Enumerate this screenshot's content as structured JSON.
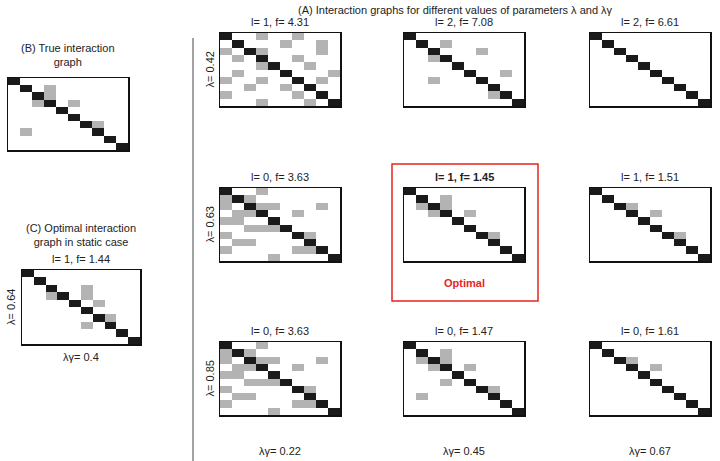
{
  "title": "(A) Interaction graphs for different values of parameters λ and λγ",
  "chart_data": [
    {
      "type": "heatmap",
      "title": "(B) True interaction graph",
      "tick_labels": false,
      "zlim": [
        0,
        2
      ],
      "colors": [
        "#ffffff",
        "#b3b3b3",
        "#1a1a1a"
      ],
      "cells": [
        [
          2,
          0,
          0,
          0,
          0,
          0,
          0,
          0,
          0,
          0
        ],
        [
          0,
          2,
          0,
          1,
          0,
          0,
          0,
          0,
          0,
          0
        ],
        [
          0,
          0,
          2,
          1,
          0,
          0,
          0,
          0,
          0,
          0
        ],
        [
          0,
          0,
          1,
          2,
          0,
          1,
          0,
          0,
          0,
          0
        ],
        [
          0,
          0,
          0,
          0,
          2,
          0,
          0,
          0,
          0,
          0
        ],
        [
          0,
          0,
          0,
          0,
          0,
          2,
          0,
          0,
          0,
          0
        ],
        [
          0,
          0,
          0,
          0,
          0,
          0,
          2,
          1,
          0,
          0
        ],
        [
          0,
          1,
          0,
          0,
          0,
          0,
          0,
          2,
          0,
          0
        ],
        [
          0,
          0,
          0,
          0,
          0,
          0,
          0,
          0,
          2,
          0
        ],
        [
          0,
          0,
          0,
          0,
          0,
          0,
          0,
          0,
          0,
          2
        ]
      ]
    },
    {
      "type": "heatmap",
      "title": "(C) Optimal interaction graph in static case",
      "subtitle": "l= 1, f= 1.44",
      "x_label": "λγ= 0.4",
      "y_label": "λ= 0.64",
      "tick_labels": false,
      "zlim": [
        0,
        2
      ],
      "colors": [
        "#ffffff",
        "#b3b3b3",
        "#1a1a1a"
      ],
      "cells": [
        [
          2,
          0,
          0,
          0,
          0,
          0,
          0,
          0,
          0,
          0
        ],
        [
          0,
          2,
          0,
          0,
          0,
          0,
          0,
          0,
          0,
          0
        ],
        [
          0,
          0,
          2,
          0,
          0,
          1,
          0,
          0,
          0,
          0
        ],
        [
          0,
          0,
          1,
          2,
          0,
          1,
          0,
          0,
          0,
          0
        ],
        [
          0,
          0,
          0,
          0,
          2,
          0,
          1,
          0,
          0,
          0
        ],
        [
          0,
          0,
          0,
          0,
          0,
          2,
          0,
          0,
          0,
          0
        ],
        [
          0,
          0,
          0,
          0,
          0,
          0,
          2,
          1,
          0,
          0
        ],
        [
          0,
          0,
          0,
          0,
          0,
          1,
          0,
          2,
          0,
          0
        ],
        [
          0,
          0,
          0,
          0,
          0,
          0,
          0,
          0,
          2,
          0
        ],
        [
          0,
          0,
          0,
          0,
          0,
          0,
          0,
          0,
          0,
          2
        ]
      ]
    },
    {
      "type": "heatmap",
      "title": "l= 1, f= 4.31",
      "y_label": "λ= 0.42",
      "tick_labels": false,
      "zlim": [
        0,
        2
      ],
      "colors": [
        "#ffffff",
        "#b3b3b3",
        "#1a1a1a"
      ],
      "cells": [
        [
          2,
          0,
          0,
          1,
          0,
          0,
          1,
          0,
          0,
          0
        ],
        [
          0,
          2,
          0,
          0,
          0,
          1,
          0,
          0,
          1,
          0
        ],
        [
          1,
          0,
          2,
          1,
          0,
          0,
          0,
          0,
          1,
          0
        ],
        [
          0,
          1,
          0,
          2,
          0,
          0,
          1,
          0,
          0,
          0
        ],
        [
          0,
          0,
          0,
          1,
          2,
          0,
          0,
          1,
          0,
          0
        ],
        [
          0,
          1,
          0,
          0,
          0,
          2,
          0,
          0,
          0,
          1
        ],
        [
          1,
          0,
          0,
          1,
          0,
          0,
          2,
          0,
          1,
          0
        ],
        [
          0,
          0,
          1,
          0,
          0,
          1,
          0,
          2,
          0,
          0
        ],
        [
          1,
          0,
          0,
          0,
          0,
          0,
          1,
          0,
          2,
          0
        ],
        [
          0,
          0,
          0,
          1,
          0,
          0,
          0,
          1,
          0,
          2
        ]
      ]
    },
    {
      "type": "heatmap",
      "title": "l= 2, f= 7.08",
      "tick_labels": false,
      "zlim": [
        0,
        2
      ],
      "colors": [
        "#ffffff",
        "#b3b3b3",
        "#1a1a1a"
      ],
      "cells": [
        [
          2,
          0,
          0,
          0,
          0,
          0,
          0,
          0,
          0,
          0
        ],
        [
          0,
          2,
          0,
          1,
          0,
          0,
          0,
          0,
          0,
          0
        ],
        [
          0,
          0,
          2,
          0,
          0,
          0,
          1,
          0,
          0,
          0
        ],
        [
          0,
          0,
          1,
          2,
          0,
          0,
          0,
          0,
          0,
          0
        ],
        [
          0,
          0,
          0,
          0,
          2,
          0,
          0,
          0,
          0,
          0
        ],
        [
          0,
          0,
          0,
          0,
          0,
          2,
          0,
          0,
          1,
          0
        ],
        [
          0,
          0,
          1,
          0,
          0,
          0,
          2,
          0,
          0,
          0
        ],
        [
          0,
          0,
          0,
          0,
          0,
          0,
          0,
          2,
          0,
          0
        ],
        [
          0,
          0,
          0,
          0,
          0,
          0,
          0,
          1,
          2,
          0
        ],
        [
          0,
          0,
          0,
          0,
          0,
          0,
          0,
          0,
          0,
          2
        ]
      ]
    },
    {
      "type": "heatmap",
      "title": "l= 2, f= 6.61",
      "tick_labels": false,
      "zlim": [
        0,
        2
      ],
      "colors": [
        "#ffffff",
        "#b3b3b3",
        "#1a1a1a"
      ],
      "cells": [
        [
          2,
          0,
          0,
          0,
          0,
          0,
          0,
          0,
          0,
          0
        ],
        [
          0,
          2,
          0,
          0,
          0,
          0,
          0,
          0,
          0,
          0
        ],
        [
          0,
          0,
          2,
          0,
          0,
          0,
          0,
          0,
          0,
          0
        ],
        [
          0,
          0,
          0,
          2,
          0,
          0,
          0,
          0,
          0,
          0
        ],
        [
          0,
          0,
          0,
          0,
          2,
          0,
          0,
          0,
          0,
          0
        ],
        [
          0,
          0,
          0,
          0,
          0,
          2,
          0,
          0,
          0,
          0
        ],
        [
          0,
          0,
          0,
          0,
          0,
          0,
          2,
          0,
          0,
          0
        ],
        [
          0,
          0,
          0,
          0,
          0,
          0,
          0,
          2,
          0,
          0
        ],
        [
          0,
          0,
          0,
          0,
          0,
          0,
          0,
          0,
          2,
          0
        ],
        [
          0,
          0,
          0,
          0,
          0,
          0,
          0,
          0,
          0,
          2
        ]
      ]
    },
    {
      "type": "heatmap",
      "title": "l= 0, f= 3.63",
      "y_label": "λ= 0.63",
      "tick_labels": false,
      "zlim": [
        0,
        2
      ],
      "colors": [
        "#ffffff",
        "#b3b3b3",
        "#1a1a1a"
      ],
      "cells": [
        [
          2,
          0,
          0,
          1,
          0,
          0,
          0,
          0,
          0,
          0
        ],
        [
          1,
          2,
          1,
          0,
          0,
          0,
          0,
          0,
          0,
          0
        ],
        [
          1,
          0,
          2,
          1,
          1,
          0,
          0,
          0,
          1,
          0
        ],
        [
          0,
          1,
          1,
          2,
          0,
          0,
          1,
          0,
          0,
          0
        ],
        [
          1,
          1,
          0,
          0,
          2,
          0,
          0,
          0,
          0,
          0
        ],
        [
          0,
          0,
          1,
          1,
          1,
          2,
          0,
          0,
          0,
          0
        ],
        [
          1,
          0,
          0,
          0,
          0,
          0,
          2,
          1,
          0,
          0
        ],
        [
          0,
          1,
          1,
          0,
          0,
          0,
          0,
          2,
          0,
          0
        ],
        [
          1,
          0,
          0,
          0,
          0,
          0,
          1,
          1,
          2,
          0
        ],
        [
          0,
          0,
          0,
          0,
          1,
          0,
          0,
          0,
          0,
          2
        ]
      ]
    },
    {
      "type": "heatmap",
      "title": "l= 1, f= 1.45",
      "annotations": [
        "Optimal"
      ],
      "color": "#e8251e",
      "tick_labels": false,
      "zlim": [
        0,
        2
      ],
      "colors": [
        "#ffffff",
        "#b3b3b3",
        "#1a1a1a"
      ],
      "cells": [
        [
          2,
          0,
          0,
          0,
          0,
          0,
          0,
          0,
          0,
          0
        ],
        [
          0,
          2,
          0,
          1,
          0,
          0,
          0,
          0,
          0,
          0
        ],
        [
          0,
          1,
          2,
          1,
          0,
          0,
          0,
          0,
          0,
          0
        ],
        [
          0,
          0,
          1,
          2,
          0,
          1,
          0,
          0,
          0,
          0
        ],
        [
          0,
          0,
          0,
          0,
          2,
          0,
          0,
          0,
          0,
          0
        ],
        [
          0,
          0,
          0,
          0,
          0,
          2,
          0,
          0,
          0,
          0
        ],
        [
          0,
          0,
          0,
          0,
          0,
          0,
          2,
          1,
          0,
          0
        ],
        [
          0,
          0,
          0,
          0,
          0,
          0,
          0,
          2,
          0,
          0
        ],
        [
          0,
          0,
          0,
          0,
          0,
          0,
          0,
          0,
          2,
          0
        ],
        [
          0,
          0,
          0,
          0,
          0,
          0,
          0,
          0,
          0,
          2
        ]
      ]
    },
    {
      "type": "heatmap",
      "title": "l= 1, f= 1.51",
      "tick_labels": false,
      "zlim": [
        0,
        2
      ],
      "colors": [
        "#ffffff",
        "#b3b3b3",
        "#1a1a1a"
      ],
      "cells": [
        [
          2,
          0,
          0,
          0,
          0,
          0,
          0,
          0,
          0,
          0
        ],
        [
          0,
          2,
          0,
          0,
          0,
          0,
          0,
          0,
          0,
          0
        ],
        [
          0,
          0,
          2,
          1,
          0,
          0,
          0,
          0,
          0,
          0
        ],
        [
          0,
          0,
          0,
          2,
          0,
          1,
          0,
          0,
          0,
          0
        ],
        [
          0,
          0,
          0,
          0,
          2,
          0,
          0,
          0,
          0,
          0
        ],
        [
          0,
          0,
          0,
          0,
          0,
          2,
          0,
          0,
          0,
          0
        ],
        [
          0,
          0,
          0,
          0,
          0,
          0,
          2,
          1,
          0,
          0
        ],
        [
          0,
          0,
          0,
          0,
          0,
          0,
          0,
          2,
          0,
          0
        ],
        [
          0,
          0,
          0,
          0,
          0,
          0,
          0,
          0,
          2,
          0
        ],
        [
          0,
          0,
          0,
          0,
          0,
          0,
          0,
          0,
          0,
          2
        ]
      ]
    },
    {
      "type": "heatmap",
      "title": "l= 0, f= 3.63",
      "y_label": "λ= 0.85",
      "x_label": "λγ= 0.22",
      "tick_labels": false,
      "zlim": [
        0,
        2
      ],
      "colors": [
        "#ffffff",
        "#b3b3b3",
        "#1a1a1a"
      ],
      "cells": [
        [
          2,
          0,
          0,
          1,
          0,
          0,
          0,
          0,
          0,
          0
        ],
        [
          1,
          2,
          1,
          0,
          0,
          0,
          0,
          0,
          0,
          0
        ],
        [
          1,
          0,
          2,
          1,
          1,
          0,
          0,
          0,
          1,
          0
        ],
        [
          0,
          1,
          1,
          2,
          0,
          0,
          1,
          0,
          0,
          0
        ],
        [
          1,
          1,
          0,
          0,
          2,
          0,
          0,
          0,
          0,
          0
        ],
        [
          0,
          0,
          1,
          1,
          1,
          2,
          0,
          0,
          0,
          0
        ],
        [
          1,
          0,
          0,
          0,
          0,
          0,
          2,
          1,
          0,
          0
        ],
        [
          0,
          1,
          1,
          0,
          0,
          0,
          0,
          2,
          0,
          0
        ],
        [
          1,
          0,
          0,
          0,
          0,
          0,
          1,
          1,
          2,
          0
        ],
        [
          0,
          0,
          0,
          0,
          1,
          0,
          0,
          0,
          0,
          2
        ]
      ]
    },
    {
      "type": "heatmap",
      "title": "l= 0, f= 1.47",
      "x_label": "λγ= 0.45",
      "tick_labels": false,
      "zlim": [
        0,
        2
      ],
      "colors": [
        "#ffffff",
        "#b3b3b3",
        "#1a1a1a"
      ],
      "cells": [
        [
          2,
          0,
          0,
          0,
          0,
          0,
          0,
          0,
          0,
          0
        ],
        [
          0,
          2,
          0,
          1,
          0,
          0,
          0,
          0,
          0,
          0
        ],
        [
          0,
          1,
          2,
          1,
          0,
          0,
          0,
          0,
          0,
          0
        ],
        [
          0,
          0,
          1,
          2,
          0,
          1,
          0,
          0,
          0,
          0
        ],
        [
          0,
          0,
          0,
          0,
          2,
          0,
          0,
          0,
          0,
          0
        ],
        [
          0,
          0,
          0,
          1,
          0,
          2,
          0,
          0,
          0,
          0
        ],
        [
          0,
          0,
          0,
          0,
          0,
          0,
          2,
          1,
          0,
          0
        ],
        [
          0,
          1,
          0,
          0,
          0,
          0,
          0,
          2,
          0,
          0
        ],
        [
          0,
          0,
          0,
          0,
          0,
          0,
          0,
          0,
          2,
          0
        ],
        [
          0,
          0,
          0,
          0,
          0,
          0,
          0,
          0,
          0,
          2
        ]
      ]
    },
    {
      "type": "heatmap",
      "title": "l= 0, f= 1.61",
      "x_label": "λγ= 0.67",
      "tick_labels": false,
      "zlim": [
        0,
        2
      ],
      "colors": [
        "#ffffff",
        "#b3b3b3",
        "#1a1a1a"
      ],
      "cells": [
        [
          2,
          0,
          0,
          0,
          0,
          0,
          0,
          0,
          0,
          0
        ],
        [
          0,
          2,
          0,
          0,
          0,
          0,
          0,
          0,
          0,
          0
        ],
        [
          0,
          0,
          2,
          1,
          0,
          0,
          0,
          0,
          0,
          0
        ],
        [
          0,
          0,
          0,
          2,
          0,
          1,
          0,
          0,
          0,
          0
        ],
        [
          0,
          0,
          0,
          0,
          2,
          0,
          0,
          0,
          0,
          0
        ],
        [
          0,
          0,
          0,
          0,
          0,
          2,
          0,
          0,
          0,
          0
        ],
        [
          0,
          0,
          0,
          0,
          0,
          0,
          2,
          0,
          0,
          0
        ],
        [
          0,
          0,
          0,
          0,
          0,
          0,
          0,
          2,
          0,
          0
        ],
        [
          0,
          0,
          0,
          0,
          0,
          0,
          0,
          0,
          2,
          0
        ],
        [
          0,
          0,
          0,
          0,
          0,
          0,
          0,
          0,
          0,
          2
        ]
      ]
    }
  ]
}
